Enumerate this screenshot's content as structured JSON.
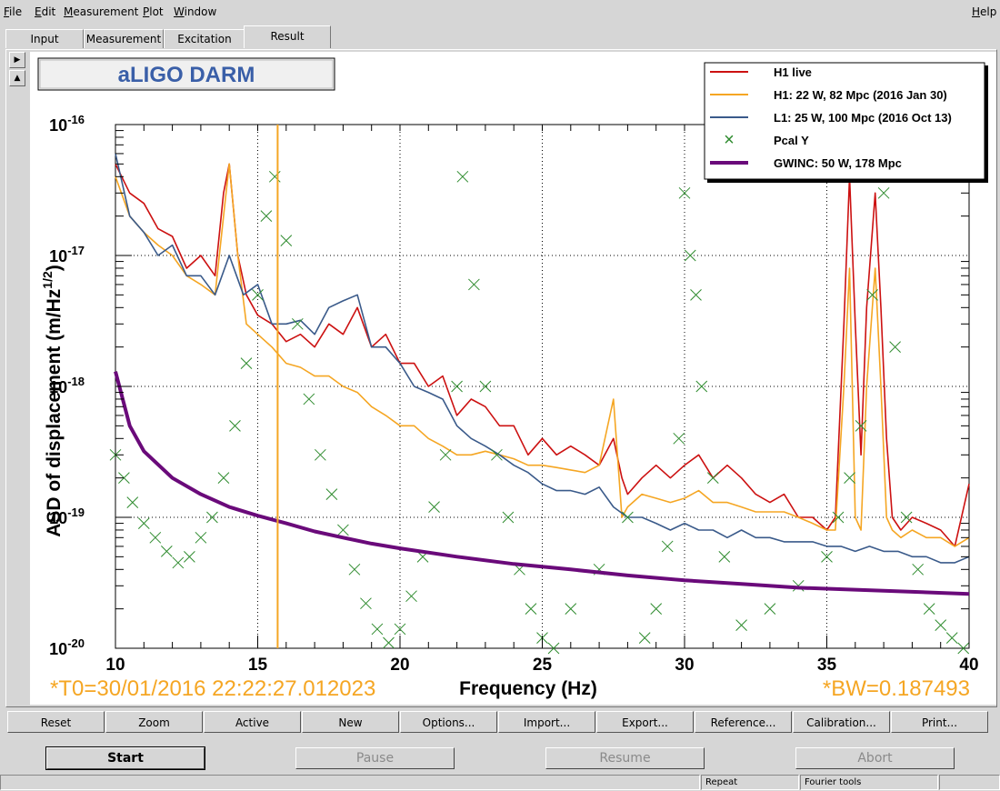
{
  "menu": {
    "items": [
      "File",
      "Edit",
      "Measurement",
      "Plot",
      "Window"
    ],
    "help": "Help"
  },
  "tabs": {
    "items": [
      "Input",
      "Measurement",
      "Excitation",
      "Result"
    ],
    "active": "Result"
  },
  "plot": {
    "title_box": "aLIGO DARM",
    "t0_label": "*T0=30/01/2016 22:22:27.012023",
    "bw_label": "*BW=0.187493",
    "colors": {
      "h1_live": "#cc1111",
      "h1_2016": "#f5a623",
      "l1_2016": "#3a5a8a",
      "pcal": "#2e8b2e",
      "gwinc": "#6a0a7a",
      "cursor": "#f5a623"
    }
  },
  "chart_data": {
    "type": "line",
    "xlabel": "Frequency (Hz)",
    "ylabel": "ASD of displacement (m/Hz",
    "ylabel_sup": "1/2",
    "ylabel_end": ")",
    "xlim": [
      10,
      40
    ],
    "ylim": [
      1e-20,
      1e-16
    ],
    "yscale": "log",
    "grid": true,
    "legend_position": "top-right",
    "x_ticks": [
      10,
      15,
      20,
      25,
      30,
      35,
      40
    ],
    "y_ticks": [
      {
        "value": 1e-16,
        "base": "10",
        "exp": "-16"
      },
      {
        "value": 1e-17,
        "base": "10",
        "exp": "-17"
      },
      {
        "value": 1e-18,
        "base": "10",
        "exp": "-18"
      },
      {
        "value": 1e-19,
        "base": "10",
        "exp": "-19"
      },
      {
        "value": 1e-20,
        "base": "10",
        "exp": "-20"
      }
    ],
    "cursor_x": 15.7,
    "series": [
      {
        "name": "H1 live",
        "color": "#cc1111",
        "style": "line",
        "x": [
          10,
          10.5,
          11,
          11.5,
          12,
          12.5,
          13,
          13.5,
          13.8,
          14,
          14.3,
          14.6,
          15,
          15.5,
          16,
          16.5,
          17,
          17.5,
          18,
          18.5,
          19,
          19.5,
          20,
          20.5,
          21,
          21.5,
          22,
          22.5,
          23,
          23.5,
          24,
          24.5,
          25,
          25.5,
          26,
          26.5,
          27,
          27.5,
          27.8,
          28,
          28.5,
          29,
          29.5,
          30,
          30.5,
          31,
          31.5,
          32,
          32.5,
          33,
          33.5,
          34,
          34.5,
          35,
          35.3,
          35.6,
          35.8,
          36,
          36.2,
          36.4,
          36.7,
          36.9,
          37.1,
          37.3,
          37.6,
          38,
          38.5,
          39,
          39.5,
          40
        ],
        "y": [
          5e-17,
          3e-17,
          2.5e-17,
          1.6e-17,
          1.4e-17,
          8e-18,
          1e-17,
          7e-18,
          3e-17,
          5e-17,
          1e-17,
          5e-18,
          3.5e-18,
          3e-18,
          2.2e-18,
          2.5e-18,
          2e-18,
          3e-18,
          2.5e-18,
          4e-18,
          2e-18,
          2.5e-18,
          1.5e-18,
          1.5e-18,
          1e-18,
          1.2e-18,
          6e-19,
          8e-19,
          7e-19,
          5e-19,
          5e-19,
          3e-19,
          4e-19,
          3e-19,
          3.5e-19,
          3e-19,
          2.5e-19,
          4e-19,
          2e-19,
          1.5e-19,
          2e-19,
          2.5e-19,
          2e-19,
          2.5e-19,
          3e-19,
          2e-19,
          2.5e-19,
          2e-19,
          1.5e-19,
          1.3e-19,
          1.5e-19,
          1e-19,
          1e-19,
          8e-20,
          1e-19,
          3e-18,
          4e-17,
          3e-18,
          3e-19,
          4e-18,
          3e-17,
          4e-18,
          4e-19,
          1e-19,
          8e-20,
          1e-19,
          9e-20,
          8e-20,
          6e-20,
          1.8e-19
        ]
      },
      {
        "name": "H1: 22 W, 82 Mpc (2016 Jan 30)",
        "color": "#f5a623",
        "style": "line",
        "x": [
          10,
          10.5,
          11,
          11.5,
          12,
          12.5,
          13,
          13.5,
          13.8,
          14,
          14.3,
          14.6,
          15,
          15.5,
          16,
          16.5,
          17,
          17.5,
          18,
          18.5,
          19,
          19.5,
          20,
          20.5,
          21,
          21.5,
          22,
          22.5,
          23,
          23.5,
          24,
          24.5,
          25,
          25.5,
          26,
          26.5,
          27,
          27.5,
          27.8,
          28,
          28.5,
          29,
          29.5,
          30,
          30.5,
          31,
          31.5,
          32,
          32.5,
          33,
          33.5,
          34,
          34.5,
          35,
          35.3,
          35.6,
          35.8,
          36,
          36.2,
          36.4,
          36.7,
          36.9,
          37.1,
          37.3,
          37.6,
          38,
          38.5,
          39,
          39.5,
          40
        ],
        "y": [
          4e-17,
          2e-17,
          1.5e-17,
          1.2e-17,
          1e-17,
          7e-18,
          6e-18,
          5e-18,
          2e-17,
          5e-17,
          1e-17,
          3e-18,
          2.5e-18,
          2e-18,
          1.5e-18,
          1.4e-18,
          1.2e-18,
          1.2e-18,
          1e-18,
          9e-19,
          7e-19,
          6e-19,
          5e-19,
          5e-19,
          4e-19,
          3.5e-19,
          3e-19,
          3e-19,
          3.2e-19,
          3e-19,
          2.8e-19,
          2.5e-19,
          2.5e-19,
          2.4e-19,
          2.3e-19,
          2.2e-19,
          2.5e-19,
          8e-19,
          1e-19,
          1.2e-19,
          1.5e-19,
          1.4e-19,
          1.3e-19,
          1.4e-19,
          1.6e-19,
          1.3e-19,
          1.3e-19,
          1.2e-19,
          1.1e-19,
          1.1e-19,
          1.1e-19,
          1e-19,
          9e-20,
          8e-20,
          8e-20,
          1e-18,
          8e-18,
          1e-19,
          8e-20,
          1e-18,
          8e-18,
          1e-18,
          1e-19,
          8e-20,
          7e-20,
          8e-20,
          7e-20,
          7e-20,
          6e-20,
          7e-20
        ]
      },
      {
        "name": "L1: 25 W, 100 Mpc (2016 Oct 13)",
        "color": "#3a5a8a",
        "style": "line",
        "x": [
          10,
          10.5,
          11,
          11.5,
          12,
          12.5,
          13,
          13.5,
          14,
          14.5,
          15,
          15.5,
          16,
          16.5,
          17,
          17.5,
          18,
          18.5,
          19,
          19.5,
          20,
          20.5,
          21,
          21.5,
          22,
          22.5,
          23,
          23.5,
          24,
          24.5,
          25,
          25.5,
          26,
          26.5,
          27,
          27.5,
          28,
          28.5,
          29,
          29.5,
          30,
          30.5,
          31,
          31.5,
          32,
          32.5,
          33,
          33.5,
          34,
          34.5,
          35,
          35.5,
          36,
          36.5,
          37,
          37.5,
          38,
          38.5,
          39,
          39.5,
          40
        ],
        "y": [
          6e-17,
          2e-17,
          1.5e-17,
          1e-17,
          1.2e-17,
          7e-18,
          7e-18,
          5e-18,
          1e-17,
          5e-18,
          6e-18,
          3e-18,
          3e-18,
          3.2e-18,
          2.5e-18,
          4e-18,
          4.5e-18,
          5e-18,
          2e-18,
          2e-18,
          1.5e-18,
          1e-18,
          9e-19,
          8e-19,
          5e-19,
          4e-19,
          3.5e-19,
          3e-19,
          2.5e-19,
          2.2e-19,
          1.8e-19,
          1.6e-19,
          1.6e-19,
          1.5e-19,
          1.7e-19,
          1.2e-19,
          1e-19,
          1e-19,
          9e-20,
          8e-20,
          9e-20,
          8e-20,
          8e-20,
          7e-20,
          8e-20,
          7e-20,
          7e-20,
          6.5e-20,
          6.5e-20,
          6.5e-20,
          6e-20,
          6e-20,
          5.5e-20,
          6e-20,
          5.5e-20,
          5.5e-20,
          5e-20,
          5e-20,
          4.5e-20,
          4.5e-20,
          5e-20
        ]
      },
      {
        "name": "Pcal Y",
        "color": "#2e8b2e",
        "style": "marker",
        "x": [
          10,
          10.3,
          10.6,
          11,
          11.4,
          11.8,
          12.2,
          12.6,
          13,
          13.4,
          13.8,
          14.2,
          14.6,
          15,
          15.3,
          15.6,
          16,
          16.4,
          16.8,
          17.2,
          17.6,
          18,
          18.4,
          18.8,
          19.2,
          19.6,
          20,
          20.4,
          20.8,
          21.2,
          21.6,
          22,
          22.2,
          22.6,
          23,
          23.4,
          23.8,
          24.2,
          24.6,
          25,
          25.4,
          26,
          27,
          28,
          28.6,
          29,
          29.4,
          29.8,
          30,
          30.2,
          30.4,
          30.6,
          31,
          31.4,
          32,
          33,
          34,
          35,
          35.4,
          35.8,
          36.2,
          36.6,
          37,
          37.4,
          37.8,
          38.2,
          38.6,
          39,
          39.4,
          39.8
        ],
        "y": [
          3e-19,
          2e-19,
          1.3e-19,
          9e-20,
          7e-20,
          5.5e-20,
          4.5e-20,
          5e-20,
          7e-20,
          1e-19,
          2e-19,
          5e-19,
          1.5e-18,
          5e-18,
          2e-17,
          4e-17,
          1.3e-17,
          3e-18,
          8e-19,
          3e-19,
          1.5e-19,
          8e-20,
          4e-20,
          2.2e-20,
          1.4e-20,
          1.1e-20,
          1.4e-20,
          2.5e-20,
          5e-20,
          1.2e-19,
          3e-19,
          1e-18,
          4e-17,
          6e-18,
          1e-18,
          3e-19,
          1e-19,
          4e-20,
          2e-20,
          1.2e-20,
          1e-20,
          2e-20,
          4e-20,
          1e-19,
          1.2e-20,
          2e-20,
          6e-20,
          4e-19,
          3e-17,
          1e-17,
          5e-18,
          1e-18,
          2e-19,
          5e-20,
          1.5e-20,
          2e-20,
          3e-20,
          5e-20,
          1e-19,
          2e-19,
          5e-19,
          5e-18,
          3e-17,
          2e-18,
          1e-19,
          4e-20,
          2e-20,
          1.5e-20,
          1.2e-20,
          1e-20
        ]
      },
      {
        "name": "GWINC: 50 W, 178 Mpc",
        "color": "#6a0a7a",
        "style": "thick-line",
        "x": [
          10,
          10.5,
          11,
          12,
          13,
          14,
          15,
          16,
          17,
          18,
          19,
          20,
          22,
          24,
          26,
          28,
          30,
          32,
          34,
          36,
          38,
          40
        ],
        "y": [
          1.3e-18,
          5e-19,
          3.2e-19,
          2e-19,
          1.5e-19,
          1.2e-19,
          1.03e-19,
          9e-20,
          7.8e-20,
          7e-20,
          6.3e-20,
          5.8e-20,
          5e-20,
          4.4e-20,
          4e-20,
          3.6e-20,
          3.3e-20,
          3.1e-20,
          2.9e-20,
          2.8e-20,
          2.7e-20,
          2.6e-20
        ]
      }
    ]
  },
  "toolbar": {
    "buttons": [
      "Reset",
      "Zoom",
      "Active",
      "New",
      "Options...",
      "Import...",
      "Export...",
      "Reference...",
      "Calibration...",
      "Print..."
    ]
  },
  "controls": {
    "start": "Start",
    "pause": "Pause",
    "resume": "Resume",
    "abort": "Abort"
  },
  "statusbar": {
    "repeat": "Repeat",
    "fourier": "Fourier tools"
  }
}
